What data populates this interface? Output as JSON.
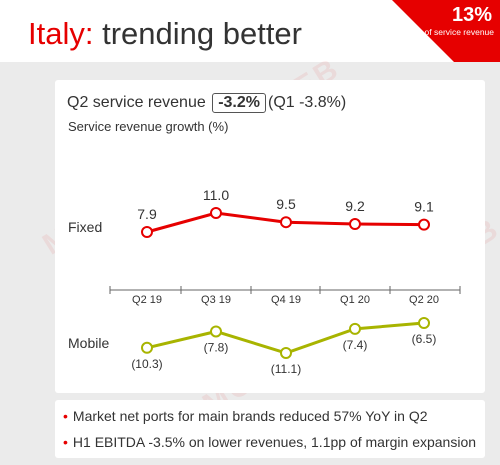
{
  "header": {
    "title_highlight": "Italy:",
    "title_rest": " trending better",
    "corner_value": "13%",
    "corner_label": "of service revenue"
  },
  "panel": {
    "head_prefix": "Q2 service revenue",
    "head_badge": "-3.2%",
    "head_suffix": "(Q1 -3.8%)",
    "subtitle": "Service revenue growth (%)",
    "row_fixed": "Fixed",
    "row_mobile": "Mobile"
  },
  "bullets": [
    "Market net ports for main brands reduced 57% YoY in Q2",
    "H1 EBITDA -3.5% on lower revenues, 1.1pp of margin expansion"
  ],
  "watermark": "MONDOMOBILEWEB",
  "colors": {
    "accent": "#e60000",
    "fixed": "#e60000",
    "mobile": "#a8b400",
    "text": "#333333",
    "background": "#ebebeb"
  },
  "chart_data": {
    "type": "line",
    "title": "",
    "subtitle": "Service revenue growth (%)",
    "categories": [
      "Q2 19",
      "Q3 19",
      "Q4 19",
      "Q1 20",
      "Q2 20"
    ],
    "series": [
      {
        "name": "Fixed",
        "values": [
          7.9,
          11.0,
          9.5,
          9.2,
          9.1
        ],
        "labels": [
          "7.9",
          "11.0",
          "9.5",
          "9.2",
          "9.1"
        ]
      },
      {
        "name": "Mobile",
        "values": [
          -10.3,
          -7.8,
          -11.1,
          -7.4,
          -6.5
        ],
        "labels": [
          "(10.3)",
          "(7.8)",
          "(11.1)",
          "(7.4)",
          "(6.5)"
        ]
      }
    ]
  }
}
